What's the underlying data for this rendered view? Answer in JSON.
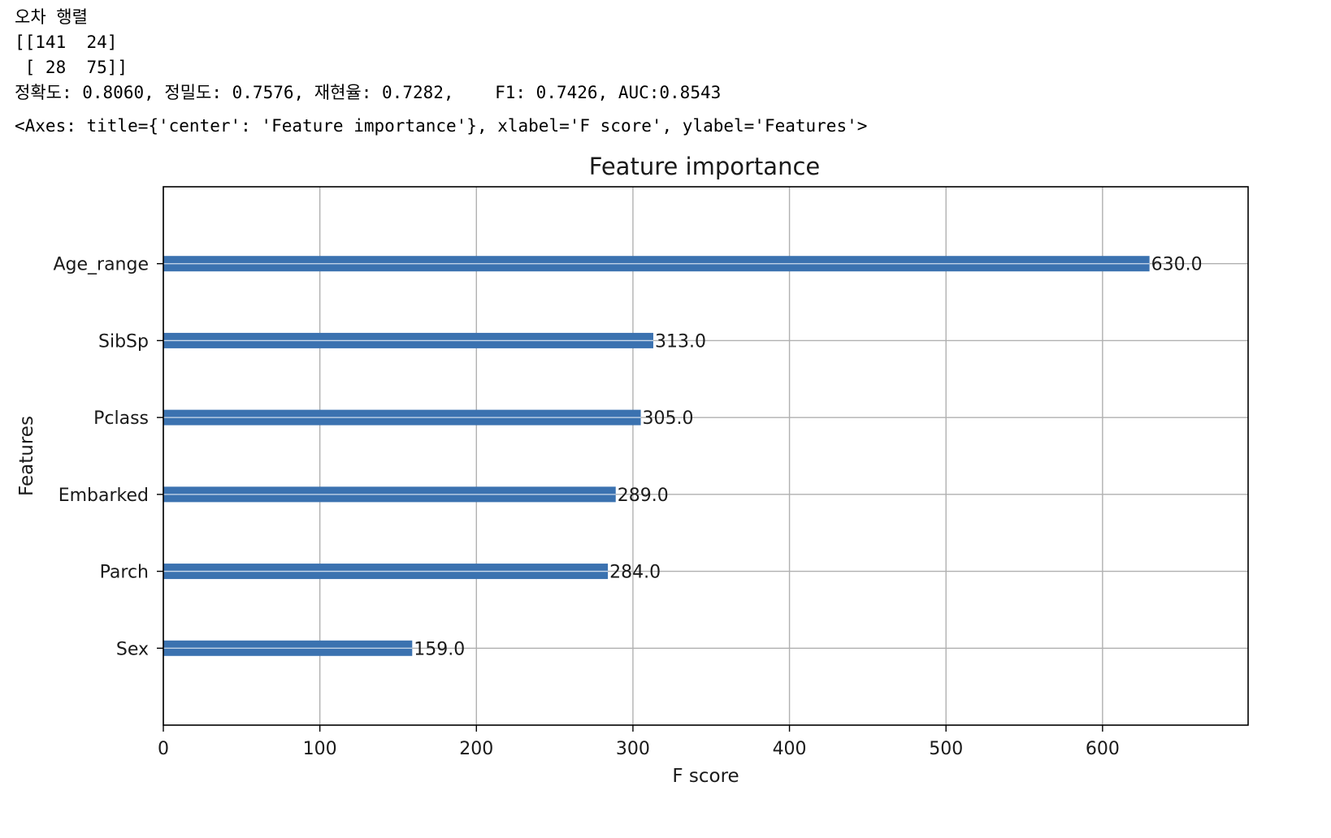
{
  "console": {
    "lines": [
      "오차 행렬",
      "[[141  24]",
      " [ 28  75]]",
      "정확도: 0.8060, 정밀도: 0.7576, 재현율: 0.7282,    F1: 0.7426, AUC:0.8543"
    ],
    "axes_repr": "<Axes: title={'center': 'Feature importance'}, xlabel='F score', ylabel='Features'>"
  },
  "chart_data": {
    "type": "bar",
    "orientation": "horizontal",
    "title": "Feature importance",
    "xlabel": "F score",
    "ylabel": "Features",
    "categories": [
      "Age_range",
      "SibSp",
      "Pclass",
      "Embarked",
      "Parch",
      "Sex"
    ],
    "values": [
      630.0,
      313.0,
      305.0,
      289.0,
      284.0,
      159.0
    ],
    "value_labels": [
      "630.0",
      "313.0",
      "305.0",
      "289.0",
      "284.0",
      "159.0"
    ],
    "xlim": [
      0,
      693
    ],
    "xticks": [
      0,
      100,
      200,
      300,
      400,
      500,
      600
    ],
    "xtick_labels": [
      "0",
      "100",
      "200",
      "300",
      "400",
      "500",
      "600"
    ],
    "grid": true,
    "bar_color": "#3b72b0",
    "grid_color": "#b0b0b0"
  }
}
